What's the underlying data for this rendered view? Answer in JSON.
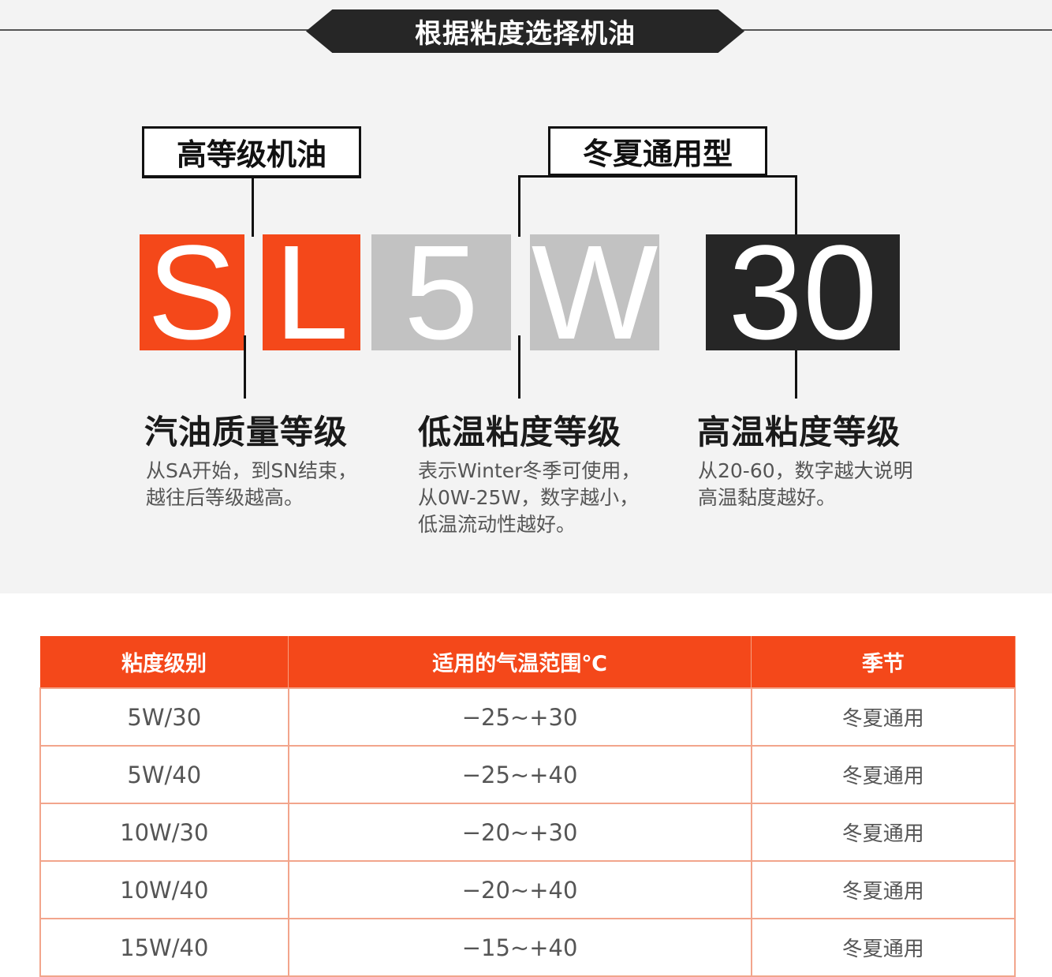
{
  "title": "根据粘度选择机油",
  "labels": {
    "grade_box": "高等级机油",
    "allseason_box": "冬夏通用型"
  },
  "code": {
    "s": "S",
    "l": "L",
    "five": "5",
    "w": "W",
    "thirty": "30"
  },
  "colors": {
    "accent": "#f4481a",
    "gray": "#c2c2c2",
    "dark": "#262626"
  },
  "sections": [
    {
      "heading": "汽油质量等级",
      "desc": "从SA开始，到SN结束，\n越往后等级越高。"
    },
    {
      "heading": "低温粘度等级",
      "desc": "表示Winter冬季可使用，\n从0W-25W，数字越小，\n低温流动性越好。"
    },
    {
      "heading": "高温粘度等级",
      "desc": "从20-60，数字越大说明\n高温黏度越好。"
    }
  ],
  "table": {
    "headers": [
      "粘度级别",
      "适用的气温范围℃",
      "季节"
    ],
    "rows": [
      [
        "5W/30",
        "−25~+30",
        "冬夏通用"
      ],
      [
        "5W/40",
        "−25~+40",
        "冬夏通用"
      ],
      [
        "10W/30",
        "−20~+30",
        "冬夏通用"
      ],
      [
        "10W/40",
        "−20~+40",
        "冬夏通用"
      ],
      [
        "15W/40",
        "−15~+40",
        "冬夏通用"
      ]
    ]
  }
}
